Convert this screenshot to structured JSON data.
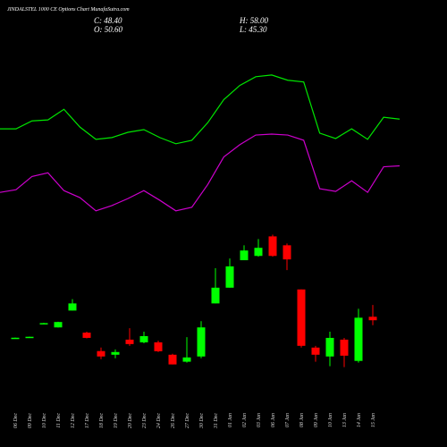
{
  "chart_data": {
    "type": "candlestick",
    "title": "JINDALSTEL 1000 CE Options Chart MunafaSutra.com",
    "summary": {
      "close": "C: 48.40",
      "open": "O: 50.60",
      "high": "H: 58.00",
      "low": "L: 45.30"
    },
    "categories": [
      "06 Dec",
      "09 Dec",
      "10 Dec",
      "11 Dec",
      "12 Dec",
      "17 Dec",
      "18 Dec",
      "19 Dec",
      "20 Dec",
      "23 Dec",
      "24 Dec",
      "26 Dec",
      "27 Dec",
      "30 Dec",
      "31 Dec",
      "01 Jan",
      "02 Jan",
      "03 Jan",
      "06 Jan",
      "07 Jan",
      "08 Jan",
      "09 Jan",
      "10 Jan",
      "13 Jan",
      "14 Jan",
      "15 Jan"
    ],
    "open": [
      37.2,
      37.6,
      46.0,
      43.9,
      54.5,
      40.6,
      29.0,
      26.7,
      36.2,
      34.5,
      34.5,
      26.7,
      22.3,
      25.6,
      59.0,
      68.9,
      86.2,
      88.9,
      101.2,
      95.6,
      67.8,
      31.2,
      25.6,
      36.2,
      22.8,
      50.6
    ],
    "high": [
      37.5,
      38.1,
      46.8,
      47.5,
      61.7,
      41.2,
      31.2,
      30.0,
      43.4,
      41.2,
      35.6,
      27.3,
      37.8,
      47.8,
      81.2,
      87.3,
      95.6,
      99.5,
      102.3,
      96.7,
      67.8,
      32.3,
      41.2,
      37.3,
      55.6,
      58.0
    ],
    "low": [
      37.1,
      37.5,
      45.9,
      43.8,
      54.5,
      37.0,
      23.9,
      24.5,
      32.3,
      33.9,
      28.4,
      20.6,
      21.7,
      24.5,
      59.0,
      68.9,
      86.2,
      88.4,
      88.4,
      80.0,
      31.2,
      22.3,
      19.5,
      18.9,
      21.7,
      45.3
    ],
    "close": [
      37.4,
      38.0,
      46.6,
      47.3,
      59.0,
      37.3,
      25.6,
      28.4,
      33.4,
      38.4,
      28.9,
      20.6,
      25.0,
      43.9,
      68.9,
      82.3,
      92.3,
      94.0,
      88.9,
      86.7,
      32.3,
      26.7,
      37.3,
      26.1,
      50.0,
      48.4
    ],
    "up_color": "#00ff00",
    "down_color": "#ff0000",
    "series": [
      {
        "color": "#00e600",
        "values": [
          168.9,
          168.9,
          173.9,
          174.5,
          181.2,
          170.0,
          162.3,
          163.4,
          166.7,
          168.4,
          163.4,
          159.5,
          161.7,
          172.8,
          187.3,
          196.2,
          201.7,
          202.8,
          199.5,
          198.4,
          166.2,
          162.8,
          168.9,
          162.3,
          176.2,
          175.0
        ]
      },
      {
        "color": "#cc00cc",
        "values": [
          128.9,
          130.6,
          138.9,
          141.2,
          130.0,
          125.6,
          117.3,
          120.6,
          125.0,
          130.0,
          123.9,
          117.3,
          119.5,
          133.9,
          151.2,
          158.9,
          165.0,
          165.6,
          165.0,
          161.7,
          131.2,
          129.5,
          136.2,
          128.9,
          145.0,
          145.6
        ]
      }
    ],
    "ylim": [
      -10,
      250
    ]
  }
}
